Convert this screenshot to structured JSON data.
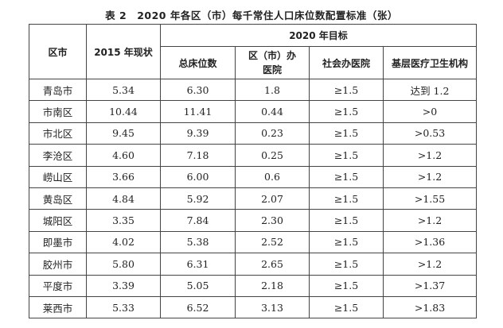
{
  "title": "表 2　2020 年各区（市）每千常住人口床位数配置标准（张）",
  "headers": {
    "district": "区市",
    "status_2015": "2015 年现状",
    "target_2020": "2020 年目标",
    "total_beds": "总床位数",
    "district_hospital": "区（市）办医院",
    "social_hospital": "社会办医院",
    "primary_care": "基层医疗卫生机构"
  },
  "rows": [
    [
      "青岛市",
      "5.34",
      "6.30",
      "1.8",
      "≥1.5",
      "达到 1.2"
    ],
    [
      "市南区",
      "10.44",
      "11.41",
      "0.44",
      "≥1.5",
      ">0"
    ],
    [
      "市北区",
      "9.45",
      "9.39",
      "0.23",
      "≥1.5",
      ">0.53"
    ],
    [
      "李沧区",
      "4.60",
      "7.18",
      "0.25",
      "≥1.5",
      ">1.2"
    ],
    [
      "崂山区",
      "3.66",
      "6.00",
      "0.6",
      "≥1.5",
      ">1.2"
    ],
    [
      "黄岛区",
      "4.84",
      "5.92",
      "2.07",
      "≥1.5",
      ">1.55"
    ],
    [
      "城阳区",
      "3.35",
      "7.84",
      "2.30",
      "≥1.5",
      ">1.2"
    ],
    [
      "即墨市",
      "4.02",
      "5.38",
      "2.52",
      "≥1.5",
      ">1.36"
    ],
    [
      "胶州市",
      "5.80",
      "6.31",
      "2.65",
      "≥1.5",
      ">1.2"
    ],
    [
      "平度市",
      "3.39",
      "5.05",
      "2.18",
      "≥1.5",
      ">1.37"
    ],
    [
      "莱西市",
      "5.33",
      "6.52",
      "3.13",
      "≥1.5",
      ">1.83"
    ]
  ]
}
